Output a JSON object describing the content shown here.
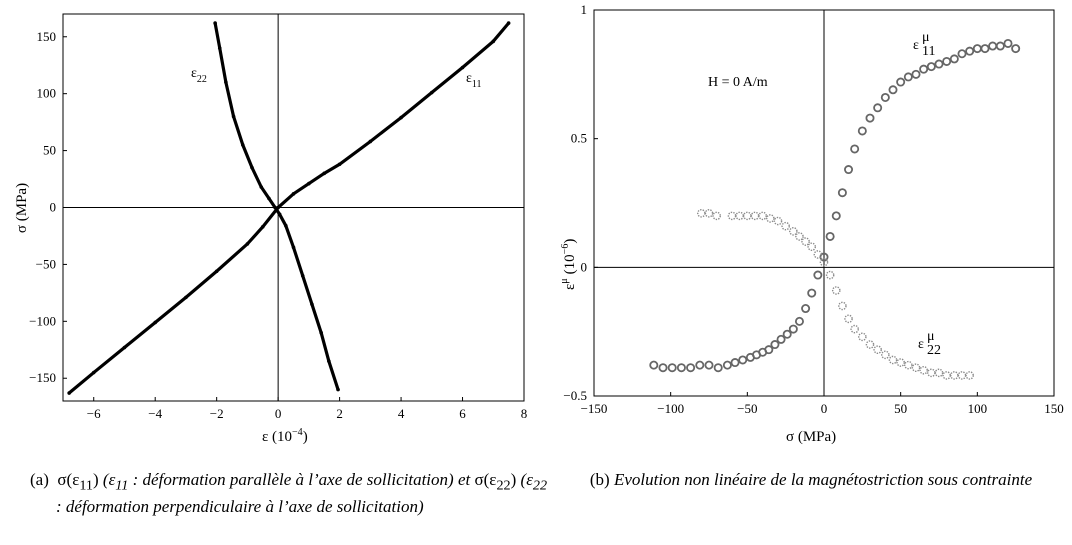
{
  "chart_data": [
    {
      "type": "scatter",
      "title": "",
      "xlabel": "ε  (10",
      "xlabel_exp": "−4",
      "xlabel_close": ")",
      "ylabel": "σ (MPa)",
      "xlim": [
        -7,
        8
      ],
      "ylim": [
        -170,
        170
      ],
      "xticks": [
        -6,
        -4,
        -2,
        0,
        2,
        4,
        6,
        8
      ],
      "yticks": [
        -150,
        -100,
        -50,
        0,
        50,
        100,
        150
      ],
      "grid": false,
      "zero_lines": true,
      "series": [
        {
          "name": "ε11",
          "label_main": "ε",
          "label_sub": "11",
          "marker": "dense-dots",
          "color": "#000000",
          "x": [
            -6.8,
            -6,
            -5,
            -4,
            -3,
            -2,
            -1,
            -0.5,
            0,
            0.5,
            1,
            1.5,
            2,
            3,
            4,
            5,
            6,
            7,
            7.5
          ],
          "y": [
            -163,
            -145,
            -123,
            -101,
            -79,
            -56,
            -32,
            -17,
            0,
            12,
            21,
            30,
            38,
            58,
            79,
            101,
            123,
            146,
            162
          ]
        },
        {
          "name": "ε22",
          "label_main": "ε",
          "label_sub": "22",
          "marker": "dense-dots",
          "color": "#000000",
          "x": [
            -2.05,
            -1.9,
            -1.7,
            -1.45,
            -1.15,
            -0.85,
            -0.55,
            -0.3,
            -0.1,
            0.05,
            0.25,
            0.5,
            0.8,
            1.1,
            1.4,
            1.65,
            1.95
          ],
          "y": [
            162,
            140,
            110,
            80,
            55,
            35,
            18,
            8,
            0,
            -6,
            -16,
            -35,
            -60,
            -85,
            -110,
            -135,
            -160
          ]
        }
      ]
    },
    {
      "type": "scatter",
      "title": "",
      "xlabel": "σ (MPa)",
      "ylabel": "ε",
      "ylabel_sup": "μ",
      "ylabel_unit": "(10",
      "ylabel_unit_exp": "−6",
      "ylabel_unit_close": ")",
      "xlim": [
        -150,
        150
      ],
      "ylim": [
        -0.5,
        1
      ],
      "xticks": [
        -150,
        -100,
        -50,
        0,
        50,
        100,
        150
      ],
      "yticks": [
        -0.5,
        0,
        0.5,
        1
      ],
      "ytick_labels": [
        "−0.5",
        "0",
        "0.5",
        "1"
      ],
      "grid": false,
      "zero_lines": true,
      "annotations": [
        "H = 0 A/m"
      ],
      "series": [
        {
          "name": "ε11μ",
          "label_main": "ε",
          "label_sub": "11",
          "label_sup": "μ",
          "marker": "circle",
          "color": "#666666",
          "x": [
            -111,
            -105,
            -99,
            -93,
            -87,
            -81,
            -75,
            -69,
            -63,
            -58,
            -53,
            -48,
            -44,
            -40,
            -36,
            -32,
            -28,
            -24,
            -20,
            -16,
            -12,
            -8,
            -4,
            0,
            4,
            8,
            12,
            16,
            20,
            25,
            30,
            35,
            40,
            45,
            50,
            55,
            60,
            65,
            70,
            75,
            80,
            85,
            90,
            95,
            100,
            105,
            110,
            115,
            120,
            125
          ],
          "y": [
            -0.38,
            -0.39,
            -0.39,
            -0.39,
            -0.39,
            -0.38,
            -0.38,
            -0.39,
            -0.38,
            -0.37,
            -0.36,
            -0.35,
            -0.34,
            -0.33,
            -0.32,
            -0.3,
            -0.28,
            -0.26,
            -0.24,
            -0.21,
            -0.16,
            -0.1,
            -0.03,
            0.04,
            0.12,
            0.2,
            0.29,
            0.38,
            0.46,
            0.53,
            0.58,
            0.62,
            0.66,
            0.69,
            0.72,
            0.74,
            0.75,
            0.77,
            0.78,
            0.79,
            0.8,
            0.81,
            0.83,
            0.84,
            0.85,
            0.85,
            0.86,
            0.86,
            0.87,
            0.85
          ]
        },
        {
          "name": "ε22μ",
          "label_main": "ε",
          "label_sub": "22",
          "label_sup": "μ",
          "marker": "dotted-circle",
          "color": "#8a8a8a",
          "x": [
            -80,
            -75,
            -70,
            -60,
            -55,
            -50,
            -45,
            -40,
            -35,
            -30,
            -25,
            -20,
            -16,
            -12,
            -8,
            -4,
            0,
            4,
            8,
            12,
            16,
            20,
            25,
            30,
            35,
            40,
            45,
            50,
            55,
            60,
            65,
            70,
            75,
            80,
            85,
            90,
            95
          ],
          "y": [
            0.21,
            0.21,
            0.2,
            0.2,
            0.2,
            0.2,
            0.2,
            0.2,
            0.19,
            0.18,
            0.16,
            0.14,
            0.12,
            0.1,
            0.08,
            0.05,
            0.02,
            -0.03,
            -0.09,
            -0.15,
            -0.2,
            -0.24,
            -0.27,
            -0.3,
            -0.32,
            -0.34,
            -0.36,
            -0.37,
            -0.38,
            -0.39,
            -0.4,
            -0.41,
            -0.41,
            -0.42,
            -0.42,
            -0.42,
            -0.42
          ]
        }
      ]
    }
  ],
  "captions": {
    "a_tag": "(a)",
    "a_sigma_open": "σ(ε",
    "a_sub1": "11",
    "a_close1": ")",
    "a_paren_open1": " (ε",
    "a_sub2": "11",
    "a_text1": " : déformation parallèle à l’axe de sollicitation)",
    "a_et": " et ",
    "a_sigma_open2": "σ(ε",
    "a_sub3": "22",
    "a_close2": ")",
    "a_paren_open2": " (ε",
    "a_sub4": "22",
    "a_text2": " : déformation perpendiculaire à l’axe de sollicitation)",
    "b_tag": "(b)",
    "b_text": "Evolution non linéaire de la magnétostriction sous contrainte"
  }
}
